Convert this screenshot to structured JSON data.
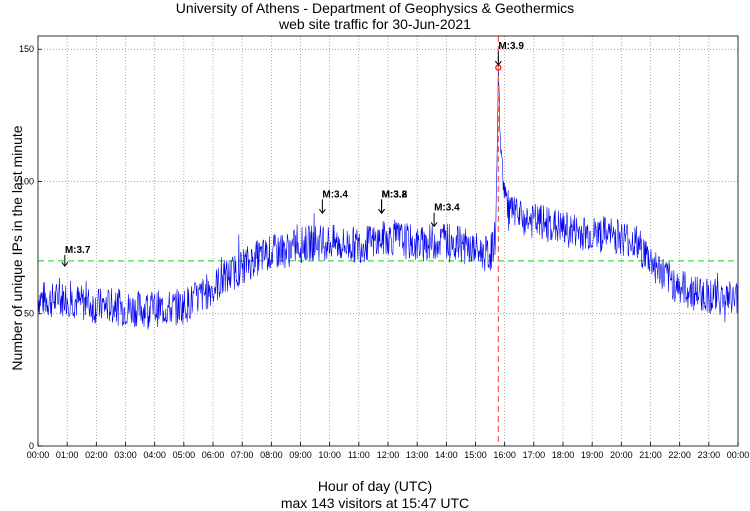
{
  "chart_data": {
    "type": "line",
    "title": "University of Athens - Department of Geophysics & Geothermics",
    "subtitle": "web site traffic for 30-Jun-2021",
    "xlabel": "Hour of day (UTC)",
    "ylabel": "Number of unique IPs in the last minute",
    "footer": "max 143 visitors at 15:47 UTC",
    "xlim": [
      0,
      24
    ],
    "ylim": [
      0,
      155
    ],
    "x_ticks": [
      "00:00",
      "01:00",
      "02:00",
      "03:00",
      "04:00",
      "05:00",
      "06:00",
      "07:00",
      "08:00",
      "09:00",
      "10:00",
      "11:00",
      "12:00",
      "13:00",
      "14:00",
      "15:00",
      "16:00",
      "17:00",
      "18:00",
      "19:00",
      "20:00",
      "21:00",
      "22:00",
      "23:00",
      "00:00"
    ],
    "y_ticks": [
      0,
      50,
      100,
      150
    ],
    "grid": true,
    "reference_line": {
      "y": 70,
      "color": "#22cc22",
      "style": "dashed"
    },
    "event_line": {
      "x": 15.783,
      "color": "#ff5555",
      "style": "dashed"
    },
    "max_point": {
      "x": 15.783,
      "y": 143
    },
    "series": [
      {
        "color": "#0000ee",
        "x": [
          0,
          0.5,
          1,
          1.5,
          2,
          2.5,
          3,
          3.5,
          4,
          4.5,
          5,
          5.5,
          6,
          6.5,
          7,
          7.5,
          8,
          8.5,
          9,
          9.5,
          10,
          10.5,
          11,
          11.5,
          12,
          12.5,
          13,
          13.5,
          14,
          14.5,
          15,
          15.5,
          15.7,
          15.783,
          15.9,
          16.1,
          16.5,
          17,
          17.5,
          18,
          18.5,
          19,
          19.5,
          20,
          20.5,
          21,
          21.5,
          22,
          22.5,
          23,
          23.5,
          24
        ],
        "y": [
          56,
          55,
          56,
          54,
          53,
          53,
          52,
          52,
          52,
          52,
          53,
          56,
          60,
          64,
          68,
          71,
          73,
          74,
          76,
          77,
          77,
          76,
          76,
          77,
          79,
          78,
          76,
          77,
          78,
          76,
          74,
          72,
          80,
          143,
          105,
          90,
          86,
          85,
          84,
          82,
          81,
          80,
          80,
          79,
          77,
          70,
          64,
          60,
          58,
          57,
          56,
          56
        ]
      }
    ],
    "annotations": [
      {
        "label": "M:3.7",
        "x": 0.92,
        "y_text": 73,
        "y_arrow": 68
      },
      {
        "label": "M:3.4",
        "x": 9.75,
        "y_text": 94,
        "y_arrow": 88
      },
      {
        "label": "M:3.8",
        "x": 11.78,
        "y_text": 94,
        "y_arrow": 88
      },
      {
        "label": "M:3.2",
        "x": 11.78,
        "y_text": 94,
        "y_arrow": 88
      },
      {
        "label": "M:3.4",
        "x": 13.58,
        "y_text": 89,
        "y_arrow": 83
      },
      {
        "label": "M:3.9",
        "x": 15.783,
        "y_text": 150,
        "y_arrow": 144
      }
    ]
  }
}
